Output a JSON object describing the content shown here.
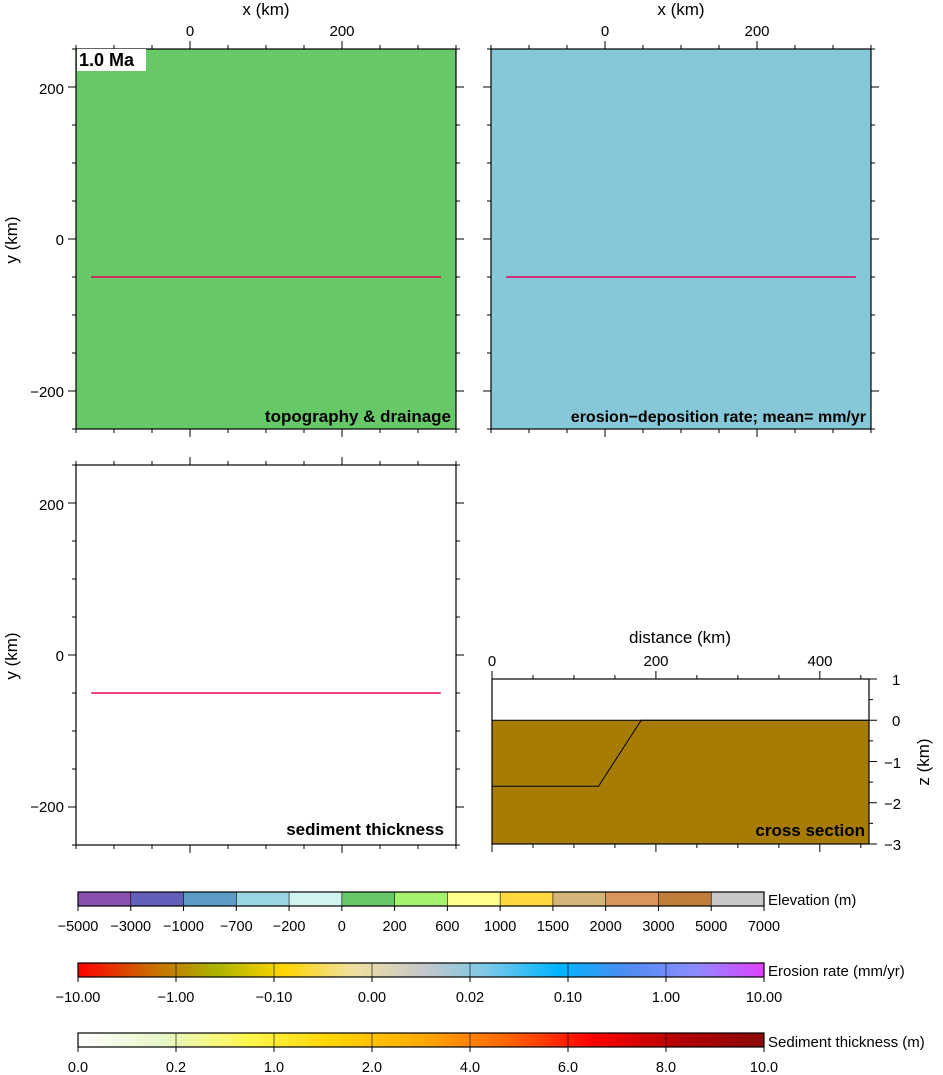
{
  "time_label": "1.0 Ma",
  "panels": {
    "topography": {
      "label": "topography & drainage",
      "fill_color": "#66c866",
      "xlabel": "x (km)",
      "ylabel": "y (km)",
      "xticks": [
        "0",
        "200"
      ],
      "yticks": [
        "200",
        "0",
        "−200"
      ]
    },
    "erosion": {
      "label": "erosion−deposition rate;  mean= mm/yr",
      "fill_color": "#86c7d8",
      "xlabel": "x (km)",
      "xticks": [
        "0",
        "200"
      ]
    },
    "sediment": {
      "label": "sediment thickness",
      "fill_color": "#ffffff",
      "ylabel": "y (km)",
      "yticks": [
        "200",
        "0",
        "−200"
      ]
    },
    "cross_section": {
      "label": "cross section",
      "xlabel": "distance (km)",
      "zlabel": "z (km)",
      "xticks": [
        "0",
        "200",
        "400"
      ],
      "zticks": [
        "1",
        "0",
        "−1",
        "−2",
        "−3"
      ],
      "fill_color": "#a67c05"
    },
    "profile_line_color": "#e8005a"
  },
  "colorbars": [
    {
      "label": "Elevation (m)",
      "ticks": [
        "−5000",
        "−3000",
        "−1000",
        "−700",
        "−200",
        "0",
        "200",
        "600",
        "1000",
        "1500",
        "2000",
        "3000",
        "5000",
        "7000"
      ],
      "colors": [
        "#8b4fb0",
        "#6260b8",
        "#5d9bc4",
        "#9ad6e2",
        "#d0f4f0",
        "#66c866",
        "#a6f26e",
        "#ffff8c",
        "#fdd83f",
        "#d5b57a",
        "#d9955a",
        "#c07c3a",
        "#c8c8c8"
      ]
    },
    {
      "label": "Erosion rate (mm/yr)",
      "ticks": [
        "−10.00",
        "−1.00",
        "−0.10",
        "0.00",
        "0.02",
        "0.10",
        "1.00",
        "10.00"
      ],
      "gradient": [
        "#ff0000",
        "#cc6600",
        "#aab200",
        "#ffd500",
        "#f0e0a0",
        "#c8c8c8",
        "#78c8e8",
        "#00b4ff",
        "#4d8cf0",
        "#8c8cff",
        "#e040ff"
      ]
    },
    {
      "label": "Sediment thickness (m)",
      "ticks": [
        "0.0",
        "0.2",
        "1.0",
        "2.0",
        "4.0",
        "6.0",
        "8.0",
        "10.0"
      ],
      "gradient": [
        "#ffffff",
        "#e6f7c8",
        "#fff64d",
        "#ffd400",
        "#ffaa00",
        "#ff6600",
        "#ff0000",
        "#b40000",
        "#8c0a0a"
      ]
    }
  ],
  "chart_data": [
    {
      "type": "heatmap",
      "title": "topography & drainage",
      "xlabel": "x (km)",
      "ylabel": "y (km)",
      "xlim": [
        -150,
        350
      ],
      "ylim": [
        -250,
        250
      ],
      "value_range_m": [
        0,
        200
      ],
      "profile_line": {
        "x": [
          -130,
          330
        ],
        "y": [
          -50,
          -50
        ]
      }
    },
    {
      "type": "heatmap",
      "title": "erosion−deposition rate;  mean= mm/yr",
      "xlabel": "x (km)",
      "xlim": [
        -150,
        350
      ],
      "ylim": [
        -250,
        250
      ],
      "value_range_mm_per_yr": [
        0.0,
        0.02
      ],
      "profile_line": {
        "x": [
          -130,
          330
        ],
        "y": [
          -50,
          -50
        ]
      }
    },
    {
      "type": "heatmap",
      "title": "sediment thickness",
      "ylabel": "y (km)",
      "xlim": [
        -150,
        350
      ],
      "ylim": [
        -250,
        250
      ],
      "profile_line": {
        "x": [
          -130,
          330
        ],
        "y": [
          -50,
          -50
        ]
      }
    },
    {
      "type": "area",
      "title": "cross section",
      "xlabel": "distance (km)",
      "ylabel": "z (km)",
      "xlim": [
        0,
        460
      ],
      "ylim": [
        -3,
        1
      ],
      "surface": {
        "x": [
          0,
          460
        ],
        "z": [
          0.0,
          0.0
        ]
      },
      "basement": {
        "x": [
          0,
          130,
          182,
          460
        ],
        "z": [
          -1.6,
          -1.6,
          0.0,
          0.0
        ]
      }
    }
  ]
}
